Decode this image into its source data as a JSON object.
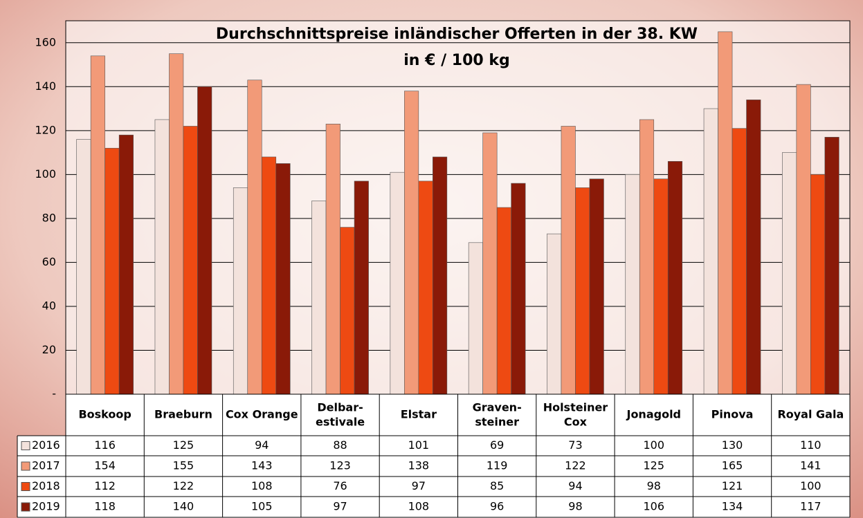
{
  "chart_data": {
    "type": "bar",
    "title": "Durchschnittspreise inländischer Offerten in der 38. KW",
    "subtitle": "in € / 100 kg",
    "categories": [
      "Boskoop",
      "Braeburn",
      "Cox Orange",
      "Delbar-\nestivale",
      "Elstar",
      "Graven-\nsteiner",
      "Holsteiner\nCox",
      "Jonagold",
      "Pinova",
      "Royal Gala"
    ],
    "series": [
      {
        "name": "2016",
        "color": "#f3e2dc",
        "values": [
          116,
          125,
          94,
          88,
          101,
          69,
          73,
          100,
          130,
          110
        ]
      },
      {
        "name": "2017",
        "color": "#f29a78",
        "values": [
          154,
          155,
          143,
          123,
          138,
          119,
          122,
          125,
          165,
          141
        ]
      },
      {
        "name": "2018",
        "color": "#ee4a12",
        "values": [
          112,
          122,
          108,
          76,
          97,
          85,
          94,
          98,
          121,
          100
        ]
      },
      {
        "name": "2019",
        "color": "#8a1a08",
        "values": [
          118,
          140,
          105,
          97,
          108,
          96,
          98,
          106,
          134,
          117
        ]
      }
    ],
    "ylim": [
      0,
      170
    ],
    "yticks": [
      {
        "value": 0,
        "label": "-"
      },
      20,
      40,
      60,
      80,
      100,
      120,
      140,
      160
    ],
    "grid": true
  }
}
